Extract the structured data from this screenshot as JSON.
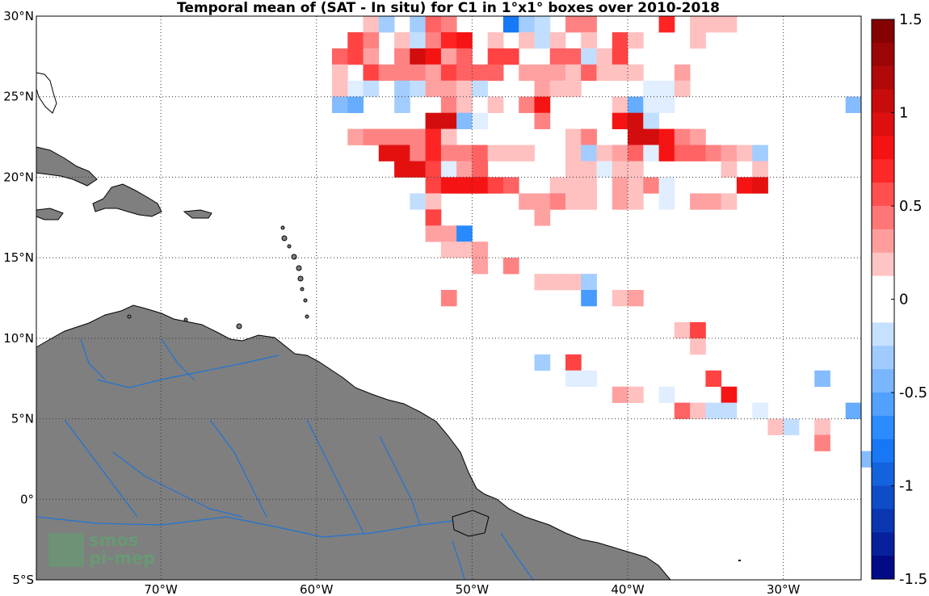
{
  "title": "Temporal mean of (SAT - In situ) for C1 in 1°x1° boxes over 2010-2018",
  "logo": {
    "line1": "smos",
    "line2": "pi-mep"
  },
  "colors": {
    "land": "#7f7f7f",
    "rivers": "#1f74d6",
    "grid": "#333333"
  },
  "map": {
    "lon_range": [
      -78,
      -25
    ],
    "lat_range": [
      -5,
      30
    ],
    "lon_ticks": [
      {
        "value": -70,
        "label": "70°W"
      },
      {
        "value": -60,
        "label": "60°W"
      },
      {
        "value": -50,
        "label": "50°W"
      },
      {
        "value": -40,
        "label": "40°W"
      },
      {
        "value": -30,
        "label": "30°W"
      }
    ],
    "lat_ticks": [
      {
        "value": 30,
        "label": "30°N"
      },
      {
        "value": 25,
        "label": "25°N"
      },
      {
        "value": 20,
        "label": "20°N"
      },
      {
        "value": 15,
        "label": "15°N"
      },
      {
        "value": 10,
        "label": "10°N"
      },
      {
        "value": 5,
        "label": "5°N"
      },
      {
        "value": 0,
        "label": "0°"
      },
      {
        "value": -5,
        "label": "5°S"
      }
    ],
    "grid": "dotted"
  },
  "colorbar": {
    "range": [
      -1.5,
      1.5
    ],
    "ticks": [
      {
        "value": 1.5,
        "label": "1.5"
      },
      {
        "value": 1,
        "label": "1"
      },
      {
        "value": 0.5,
        "label": "0.5"
      },
      {
        "value": 0,
        "label": "0"
      },
      {
        "value": -0.5,
        "label": "-0.5"
      },
      {
        "value": -1,
        "label": "-1"
      },
      {
        "value": -1.5,
        "label": "-1.5"
      }
    ],
    "low_color": "#00007a",
    "mid_color": "#ffffff",
    "high_color": "#7a0000"
  },
  "chart_data": {
    "type": "heatmap",
    "title": "Temporal mean of (SAT - In situ) for C1 in 1°x1° boxes over 2010-2018",
    "units_note": "",
    "cell_size_deg": 1,
    "cells": [
      {
        "lon": -57,
        "lat": 29,
        "v": 0.2
      },
      {
        "lon": -56,
        "lat": 29,
        "v": -0.3
      },
      {
        "lon": -54,
        "lat": 29,
        "v": -0.3
      },
      {
        "lon": -53,
        "lat": 29,
        "v": 0.5
      },
      {
        "lon": -52,
        "lat": 29,
        "v": 0.4
      },
      {
        "lon": -48,
        "lat": 29,
        "v": -0.8
      },
      {
        "lon": -47,
        "lat": 29,
        "v": -0.3
      },
      {
        "lon": -46,
        "lat": 29,
        "v": -0.2
      },
      {
        "lon": -44,
        "lat": 29,
        "v": 0.4
      },
      {
        "lon": -43,
        "lat": 29,
        "v": 0.4
      },
      {
        "lon": -38,
        "lat": 29,
        "v": 0.7
      },
      {
        "lon": -36,
        "lat": 29,
        "v": 0.2
      },
      {
        "lon": -35,
        "lat": 29,
        "v": 0.2
      },
      {
        "lon": -34,
        "lat": 29,
        "v": 0.2
      },
      {
        "lon": -58,
        "lat": 28,
        "v": 0.6
      },
      {
        "lon": -57,
        "lat": 28,
        "v": 0.4
      },
      {
        "lon": -55,
        "lat": 28,
        "v": 0.2
      },
      {
        "lon": -54,
        "lat": 28,
        "v": -0.2
      },
      {
        "lon": -53,
        "lat": 28,
        "v": 0.4
      },
      {
        "lon": -52,
        "lat": 28,
        "v": 0.7
      },
      {
        "lon": -51,
        "lat": 28,
        "v": 0.8
      },
      {
        "lon": -49,
        "lat": 28,
        "v": 0.2
      },
      {
        "lon": -47,
        "lat": 28,
        "v": 0.2
      },
      {
        "lon": -46,
        "lat": 28,
        "v": -0.2
      },
      {
        "lon": -45,
        "lat": 28,
        "v": 0.2
      },
      {
        "lon": -43,
        "lat": 28,
        "v": 0.2
      },
      {
        "lon": -41,
        "lat": 28,
        "v": 0.6
      },
      {
        "lon": -40,
        "lat": 28,
        "v": 0.2
      },
      {
        "lon": -36,
        "lat": 28,
        "v": 0.2
      },
      {
        "lon": -59,
        "lat": 27,
        "v": 0.5
      },
      {
        "lon": -58,
        "lat": 27,
        "v": 0.6
      },
      {
        "lon": -57,
        "lat": 27,
        "v": 0.3
      },
      {
        "lon": -55,
        "lat": 27,
        "v": 0.4
      },
      {
        "lon": -54,
        "lat": 27,
        "v": 1.0
      },
      {
        "lon": -53,
        "lat": 27,
        "v": 0.8
      },
      {
        "lon": -52,
        "lat": 27,
        "v": 0.3
      },
      {
        "lon": -51,
        "lat": 27,
        "v": 0.5
      },
      {
        "lon": -49,
        "lat": 27,
        "v": 0.6
      },
      {
        "lon": -48,
        "lat": 27,
        "v": 0.6
      },
      {
        "lon": -45,
        "lat": 27,
        "v": 0.5
      },
      {
        "lon": -44,
        "lat": 27,
        "v": 0.5
      },
      {
        "lon": -43,
        "lat": 27,
        "v": -0.2
      },
      {
        "lon": -42,
        "lat": 27,
        "v": 0.2
      },
      {
        "lon": -41,
        "lat": 27,
        "v": 0.6
      },
      {
        "lon": -59,
        "lat": 26,
        "v": 0.2
      },
      {
        "lon": -57,
        "lat": 26,
        "v": 0.6
      },
      {
        "lon": -56,
        "lat": 26,
        "v": 0.4
      },
      {
        "lon": -55,
        "lat": 26,
        "v": 0.4
      },
      {
        "lon": -54,
        "lat": 26,
        "v": 0.4
      },
      {
        "lon": -53,
        "lat": 26,
        "v": 0.3
      },
      {
        "lon": -52,
        "lat": 26,
        "v": 0.6
      },
      {
        "lon": -51,
        "lat": 26,
        "v": 0.5
      },
      {
        "lon": -50,
        "lat": 26,
        "v": 0.5
      },
      {
        "lon": -49,
        "lat": 26,
        "v": 0.5
      },
      {
        "lon": -47,
        "lat": 26,
        "v": 0.3
      },
      {
        "lon": -46,
        "lat": 26,
        "v": 0.3
      },
      {
        "lon": -45,
        "lat": 26,
        "v": 0.3
      },
      {
        "lon": -44,
        "lat": 26,
        "v": 0.2
      },
      {
        "lon": -43,
        "lat": 26,
        "v": 0.5
      },
      {
        "lon": -42,
        "lat": 26,
        "v": 0.2
      },
      {
        "lon": -41,
        "lat": 26,
        "v": 0.2
      },
      {
        "lon": -40,
        "lat": 26,
        "v": 0.2
      },
      {
        "lon": -37,
        "lat": 26,
        "v": 0.3
      },
      {
        "lon": -59,
        "lat": 25,
        "v": 0.2
      },
      {
        "lon": -58,
        "lat": 25,
        "v": -0.1
      },
      {
        "lon": -57,
        "lat": 25,
        "v": -0.2
      },
      {
        "lon": -55,
        "lat": 25,
        "v": -0.3
      },
      {
        "lon": -54,
        "lat": 25,
        "v": -0.2
      },
      {
        "lon": -53,
        "lat": 25,
        "v": 0.3
      },
      {
        "lon": -52,
        "lat": 25,
        "v": 0.3
      },
      {
        "lon": -51,
        "lat": 25,
        "v": 0.2
      },
      {
        "lon": -50,
        "lat": 25,
        "v": -0.2
      },
      {
        "lon": -46,
        "lat": 25,
        "v": 0.3
      },
      {
        "lon": -45,
        "lat": 25,
        "v": 0.2
      },
      {
        "lon": -44,
        "lat": 25,
        "v": 0.2
      },
      {
        "lon": -39,
        "lat": 25,
        "v": -0.1
      },
      {
        "lon": -38,
        "lat": 25,
        "v": -0.1
      },
      {
        "lon": -37,
        "lat": 25,
        "v": 0.2
      },
      {
        "lon": -59,
        "lat": 24,
        "v": -0.4
      },
      {
        "lon": -58,
        "lat": 24,
        "v": -0.5
      },
      {
        "lon": -55,
        "lat": 24,
        "v": -0.3
      },
      {
        "lon": -52,
        "lat": 24,
        "v": 0.4
      },
      {
        "lon": -51,
        "lat": 24,
        "v": 0.2
      },
      {
        "lon": -49,
        "lat": 24,
        "v": 0.2
      },
      {
        "lon": -47,
        "lat": 24,
        "v": 0.4
      },
      {
        "lon": -46,
        "lat": 24,
        "v": 0.8
      },
      {
        "lon": -41,
        "lat": 24,
        "v": 0.2
      },
      {
        "lon": -40,
        "lat": 24,
        "v": -0.5
      },
      {
        "lon": -39,
        "lat": 24,
        "v": -0.1
      },
      {
        "lon": -38,
        "lat": 24,
        "v": -0.1
      },
      {
        "lon": -26,
        "lat": 24,
        "v": -0.4
      },
      {
        "lon": -53,
        "lat": 23,
        "v": 1.0
      },
      {
        "lon": -52,
        "lat": 23,
        "v": 1.0
      },
      {
        "lon": -51,
        "lat": 23,
        "v": -0.4
      },
      {
        "lon": -50,
        "lat": 23,
        "v": -0.1
      },
      {
        "lon": -46,
        "lat": 23,
        "v": 0.4
      },
      {
        "lon": -41,
        "lat": 23,
        "v": 0.8
      },
      {
        "lon": -40,
        "lat": 23,
        "v": 1.0
      },
      {
        "lon": -39,
        "lat": 23,
        "v": -0.2
      },
      {
        "lon": -58,
        "lat": 22,
        "v": 0.3
      },
      {
        "lon": -57,
        "lat": 22,
        "v": 0.4
      },
      {
        "lon": -56,
        "lat": 22,
        "v": 0.4
      },
      {
        "lon": -55,
        "lat": 22,
        "v": 0.4
      },
      {
        "lon": -54,
        "lat": 22,
        "v": 0.4
      },
      {
        "lon": -53,
        "lat": 22,
        "v": 0.7
      },
      {
        "lon": -52,
        "lat": 22,
        "v": 0.2
      },
      {
        "lon": -44,
        "lat": 22,
        "v": 0.2
      },
      {
        "lon": -43,
        "lat": 22,
        "v": 0.4
      },
      {
        "lon": -40,
        "lat": 22,
        "v": 1.0
      },
      {
        "lon": -39,
        "lat": 22,
        "v": 1.0
      },
      {
        "lon": -38,
        "lat": 22,
        "v": 0.8
      },
      {
        "lon": -37,
        "lat": 22,
        "v": 0.4
      },
      {
        "lon": -36,
        "lat": 22,
        "v": 0.3
      },
      {
        "lon": -56,
        "lat": 21,
        "v": 0.9
      },
      {
        "lon": -55,
        "lat": 21,
        "v": 0.9
      },
      {
        "lon": -54,
        "lat": 21,
        "v": 0.4
      },
      {
        "lon": -53,
        "lat": 21,
        "v": 0.7
      },
      {
        "lon": -52,
        "lat": 21,
        "v": 0.4
      },
      {
        "lon": -51,
        "lat": 21,
        "v": 0.4
      },
      {
        "lon": -50,
        "lat": 21,
        "v": 0.5
      },
      {
        "lon": -49,
        "lat": 21,
        "v": 0.2
      },
      {
        "lon": -48,
        "lat": 21,
        "v": 0.2
      },
      {
        "lon": -47,
        "lat": 21,
        "v": 0.2
      },
      {
        "lon": -44,
        "lat": 21,
        "v": 0.2
      },
      {
        "lon": -43,
        "lat": 21,
        "v": -0.3
      },
      {
        "lon": -42,
        "lat": 21,
        "v": 0.2
      },
      {
        "lon": -41,
        "lat": 21,
        "v": 0.3
      },
      {
        "lon": -40,
        "lat": 21,
        "v": 0.5
      },
      {
        "lon": -39,
        "lat": 21,
        "v": -0.1
      },
      {
        "lon": -38,
        "lat": 21,
        "v": 0.8
      },
      {
        "lon": -37,
        "lat": 21,
        "v": 0.5
      },
      {
        "lon": -36,
        "lat": 21,
        "v": 0.5
      },
      {
        "lon": -35,
        "lat": 21,
        "v": 0.4
      },
      {
        "lon": -34,
        "lat": 21,
        "v": 0.3
      },
      {
        "lon": -33,
        "lat": 21,
        "v": 0.2
      },
      {
        "lon": -32,
        "lat": 21,
        "v": -0.3
      },
      {
        "lon": -55,
        "lat": 20,
        "v": 0.9
      },
      {
        "lon": -54,
        "lat": 20,
        "v": 0.9
      },
      {
        "lon": -53,
        "lat": 20,
        "v": 0.6
      },
      {
        "lon": -52,
        "lat": 20,
        "v": -0.1
      },
      {
        "lon": -51,
        "lat": 20,
        "v": 0.3
      },
      {
        "lon": -50,
        "lat": 20,
        "v": 0.5
      },
      {
        "lon": -44,
        "lat": 20,
        "v": 0.2
      },
      {
        "lon": -43,
        "lat": 20,
        "v": 0.2
      },
      {
        "lon": -42,
        "lat": 20,
        "v": -0.1
      },
      {
        "lon": -41,
        "lat": 20,
        "v": 0.2
      },
      {
        "lon": -40,
        "lat": 20,
        "v": 0.2
      },
      {
        "lon": -34,
        "lat": 20,
        "v": 0.2
      },
      {
        "lon": -32,
        "lat": 20,
        "v": 0.2
      },
      {
        "lon": -53,
        "lat": 19,
        "v": 0.6
      },
      {
        "lon": -52,
        "lat": 19,
        "v": 0.8
      },
      {
        "lon": -51,
        "lat": 19,
        "v": 0.8
      },
      {
        "lon": -50,
        "lat": 19,
        "v": 0.8
      },
      {
        "lon": -49,
        "lat": 19,
        "v": 0.6
      },
      {
        "lon": -48,
        "lat": 19,
        "v": 0.5
      },
      {
        "lon": -45,
        "lat": 19,
        "v": 0.2
      },
      {
        "lon": -44,
        "lat": 19,
        "v": 0.2
      },
      {
        "lon": -43,
        "lat": 19,
        "v": 0.2
      },
      {
        "lon": -41,
        "lat": 19,
        "v": 0.3
      },
      {
        "lon": -40,
        "lat": 19,
        "v": 0.2
      },
      {
        "lon": -39,
        "lat": 19,
        "v": 0.4
      },
      {
        "lon": -38,
        "lat": 19,
        "v": -0.1
      },
      {
        "lon": -33,
        "lat": 19,
        "v": 0.8
      },
      {
        "lon": -32,
        "lat": 19,
        "v": 0.9
      },
      {
        "lon": -54,
        "lat": 18,
        "v": -0.2
      },
      {
        "lon": -53,
        "lat": 18,
        "v": 0.2
      },
      {
        "lon": -47,
        "lat": 18,
        "v": 0.3
      },
      {
        "lon": -46,
        "lat": 18,
        "v": 0.3
      },
      {
        "lon": -45,
        "lat": 18,
        "v": 0.4
      },
      {
        "lon": -44,
        "lat": 18,
        "v": 0.2
      },
      {
        "lon": -43,
        "lat": 18,
        "v": 0.2
      },
      {
        "lon": -41,
        "lat": 18,
        "v": 0.3
      },
      {
        "lon": -40,
        "lat": 18,
        "v": 0.2
      },
      {
        "lon": -38,
        "lat": 18,
        "v": -0.1
      },
      {
        "lon": -36,
        "lat": 18,
        "v": 0.3
      },
      {
        "lon": -35,
        "lat": 18,
        "v": 0.3
      },
      {
        "lon": -34,
        "lat": 18,
        "v": 0.2
      },
      {
        "lon": -53,
        "lat": 17,
        "v": 0.6
      },
      {
        "lon": -46,
        "lat": 17,
        "v": 0.3
      },
      {
        "lon": -53,
        "lat": 16,
        "v": 0.3
      },
      {
        "lon": -52,
        "lat": 16,
        "v": 0.3
      },
      {
        "lon": -51,
        "lat": 16,
        "v": -0.7
      },
      {
        "lon": -52,
        "lat": 15,
        "v": 0.2
      },
      {
        "lon": -51,
        "lat": 15,
        "v": 0.2
      },
      {
        "lon": -50,
        "lat": 15,
        "v": 0.3
      },
      {
        "lon": -50,
        "lat": 14,
        "v": 0.3
      },
      {
        "lon": -48,
        "lat": 14,
        "v": 0.4
      },
      {
        "lon": -46,
        "lat": 13,
        "v": 0.2
      },
      {
        "lon": -45,
        "lat": 13,
        "v": 0.2
      },
      {
        "lon": -44,
        "lat": 13,
        "v": 0.2
      },
      {
        "lon": -43,
        "lat": 13,
        "v": -0.3
      },
      {
        "lon": -52,
        "lat": 12,
        "v": 0.4
      },
      {
        "lon": -43,
        "lat": 12,
        "v": -0.6
      },
      {
        "lon": -41,
        "lat": 12,
        "v": 0.2
      },
      {
        "lon": -40,
        "lat": 12,
        "v": 0.3
      },
      {
        "lon": -37,
        "lat": 10,
        "v": 0.2
      },
      {
        "lon": -36,
        "lat": 10,
        "v": 0.6
      },
      {
        "lon": -36,
        "lat": 9,
        "v": 0.2
      },
      {
        "lon": -46,
        "lat": 8,
        "v": -0.3
      },
      {
        "lon": -44,
        "lat": 8,
        "v": 0.6
      },
      {
        "lon": -44,
        "lat": 7,
        "v": -0.1
      },
      {
        "lon": -43,
        "lat": 7,
        "v": -0.1
      },
      {
        "lon": -35,
        "lat": 7,
        "v": 0.6
      },
      {
        "lon": -28,
        "lat": 7,
        "v": -0.4
      },
      {
        "lon": -41,
        "lat": 6,
        "v": 0.3
      },
      {
        "lon": -40,
        "lat": 6,
        "v": 0.2
      },
      {
        "lon": -38,
        "lat": 6,
        "v": -0.1
      },
      {
        "lon": -34,
        "lat": 6,
        "v": 0.8
      },
      {
        "lon": -37,
        "lat": 5,
        "v": 0.5
      },
      {
        "lon": -36,
        "lat": 5,
        "v": 0.2
      },
      {
        "lon": -35,
        "lat": 5,
        "v": -0.2
      },
      {
        "lon": -34,
        "lat": 5,
        "v": -0.2
      },
      {
        "lon": -32,
        "lat": 5,
        "v": -0.1
      },
      {
        "lon": -26,
        "lat": 5,
        "v": -0.5
      },
      {
        "lon": -31,
        "lat": 4,
        "v": 0.2
      },
      {
        "lon": -30,
        "lat": 4,
        "v": -0.2
      },
      {
        "lon": -28,
        "lat": 4,
        "v": 0.2
      },
      {
        "lon": -28,
        "lat": 3,
        "v": 0.4
      },
      {
        "lon": -25,
        "lat": 2,
        "v": -0.4
      }
    ]
  }
}
